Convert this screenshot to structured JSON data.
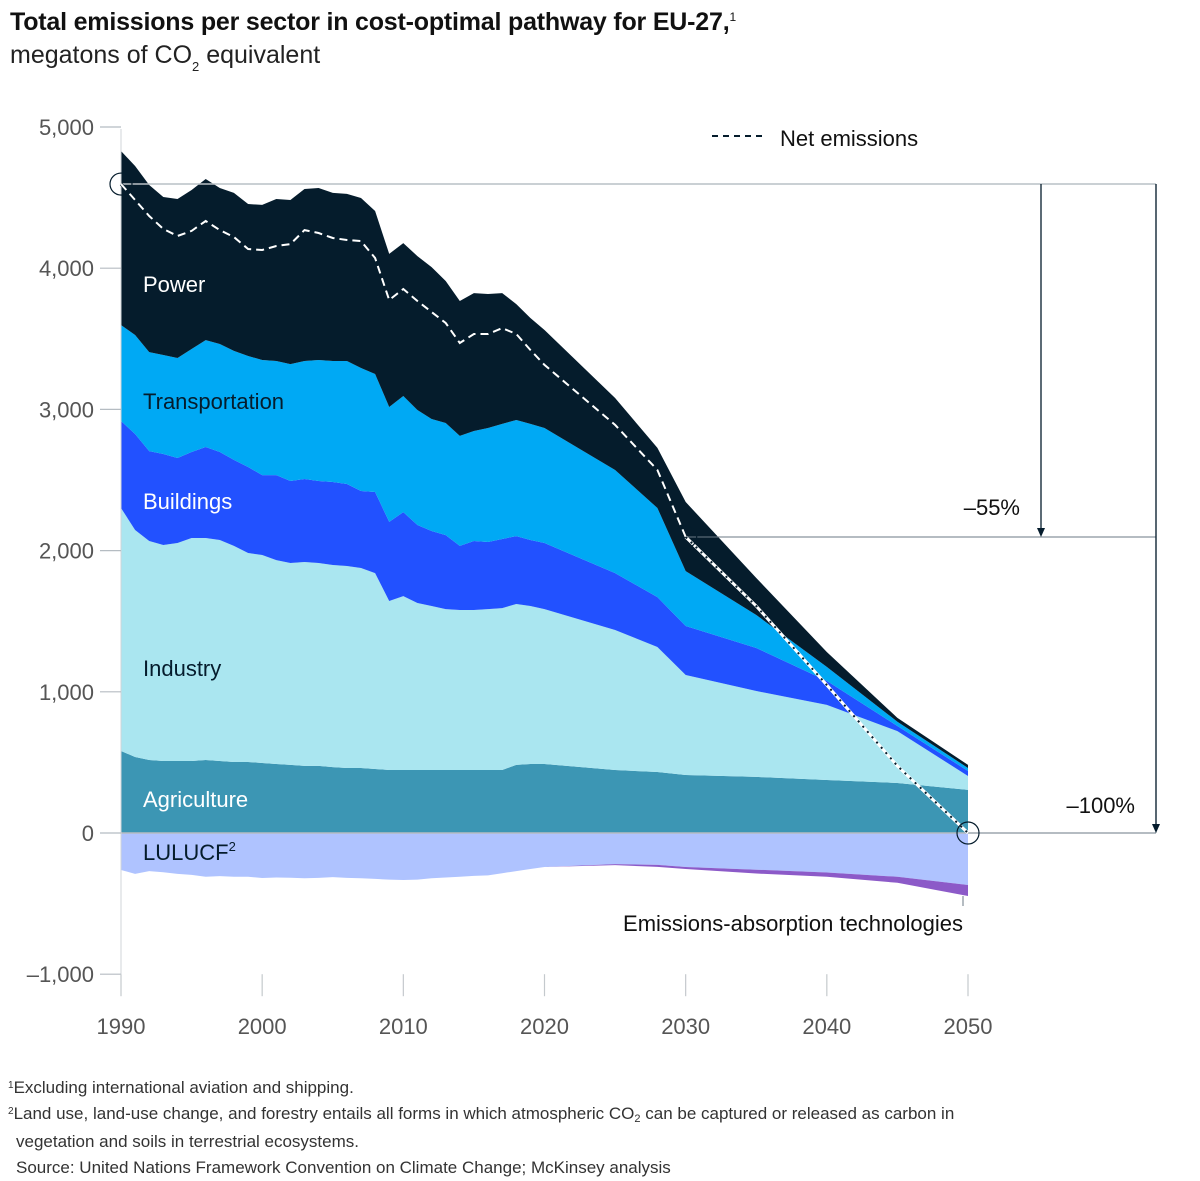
{
  "header": {
    "title": "Total emissions per sector in cost-optimal pathway for EU-27,",
    "title_footnote": "1",
    "subtitle_prefix": "megatons of CO",
    "subtitle_sub": "2",
    "subtitle_suffix": " equivalent"
  },
  "footnotes": {
    "note1_marker": "1",
    "note1_text": "Excluding international aviation and shipping.",
    "note2_marker": "2",
    "note2_text_a": "Land use, land-use change, and forestry entails all forms in which atmospheric CO",
    "note2_sub": "2",
    "note2_text_b": " can be captured or released as carbon in",
    "note2_text_c": "vegetation and soils in terrestrial ecosystems.",
    "source": "Source: United Nations Framework Convention on Climate Change; McKinsey analysis"
  },
  "chart_data": {
    "type": "area",
    "stacked": true,
    "title": "Total emissions per sector in cost-optimal pathway for EU-27",
    "ylabel": "megatons of CO2 equivalent",
    "xlabel": "",
    "xlim": [
      1990,
      2050
    ],
    "ylim": [
      -1000,
      5000
    ],
    "x_ticks": [
      1990,
      2000,
      2010,
      2020,
      2030,
      2040,
      2050
    ],
    "x_tick_labels": [
      "1990",
      "2000",
      "2010",
      "2020",
      "2030",
      "2040",
      "2050"
    ],
    "y_ticks": [
      5000,
      4000,
      3000,
      2000,
      1000,
      0,
      -1000
    ],
    "y_tick_labels": [
      "5,000",
      "4,000",
      "3,000",
      "2,000",
      "1,000",
      "0",
      "–1,000"
    ],
    "grid": false,
    "x": [
      1990,
      1991,
      1992,
      1993,
      1994,
      1995,
      1996,
      1997,
      1998,
      1999,
      2000,
      2001,
      2002,
      2003,
      2004,
      2005,
      2006,
      2007,
      2008,
      2009,
      2010,
      2011,
      2012,
      2013,
      2014,
      2015,
      2016,
      2017,
      2018,
      2019,
      2020,
      2025,
      2028,
      2030,
      2035,
      2040,
      2045,
      2050
    ],
    "series": [
      {
        "name": "Agriculture",
        "color": "#3c96b4",
        "label_color": "#ffffff",
        "values": [
          581,
          538,
          517,
          510,
          510,
          510,
          517,
          510,
          503,
          503,
          496,
          489,
          482,
          475,
          475,
          467,
          460,
          460,
          453,
          446,
          446,
          446,
          446,
          446,
          446,
          446,
          446,
          446,
          482,
          489,
          489,
          446,
          432,
          411,
          397,
          375,
          354,
          305
        ]
      },
      {
        "name": "Industry",
        "color": "#aae6f0",
        "label_color": "#051c2c",
        "values": [
          1721,
          1608,
          1551,
          1530,
          1544,
          1579,
          1572,
          1565,
          1530,
          1480,
          1473,
          1444,
          1430,
          1444,
          1437,
          1431,
          1431,
          1417,
          1388,
          1197,
          1232,
          1183,
          1162,
          1140,
          1133,
          1133,
          1140,
          1147,
          1140,
          1119,
          1097,
          992,
          885,
          708,
          609,
          532,
          368,
          99
        ]
      },
      {
        "name": "Buildings",
        "color": "#2251ff",
        "label_color": "#ffffff",
        "values": [
          616,
          680,
          637,
          644,
          602,
          609,
          645,
          623,
          609,
          609,
          566,
          602,
          581,
          588,
          581,
          588,
          581,
          545,
          574,
          560,
          595,
          552,
          531,
          524,
          454,
          489,
          475,
          489,
          481,
          467,
          468,
          403,
          354,
          347,
          304,
          170,
          36,
          35
        ]
      },
      {
        "name": "Transportation",
        "color": "#00a9f4",
        "label_color": "#051c2c",
        "values": [
          680,
          701,
          701,
          701,
          708,
          730,
          757,
          765,
          772,
          786,
          815,
          808,
          828,
          836,
          857,
          857,
          871,
          871,
          836,
          814,
          822,
          815,
          793,
          794,
          779,
          779,
          807,
          815,
          822,
          822,
          814,
          730,
          631,
          389,
          234,
          99,
          30,
          21
        ]
      },
      {
        "name": "Power",
        "color": "#051c2c",
        "label_color": "#ffffff",
        "values": [
          1232,
          1197,
          1183,
          1119,
          1126,
          1126,
          1141,
          1105,
          1119,
          1077,
          1098,
          1147,
          1162,
          1218,
          1218,
          1190,
          1183,
          1204,
          1154,
          1084,
          1083,
          1090,
          1076,
          1005,
          956,
          977,
          949,
          927,
          821,
          750,
          694,
          510,
          425,
          489,
          262,
          106,
          27,
          22
        ]
      },
      {
        "name": "LULUCF",
        "label_superscript": "2",
        "color": "#afc3ff",
        "label_color": "#051c2c",
        "negative": true,
        "values": [
          -262,
          -290,
          -270,
          -278,
          -290,
          -297,
          -310,
          -305,
          -310,
          -310,
          -319,
          -315,
          -317,
          -320,
          -318,
          -312,
          -318,
          -320,
          -325,
          -330,
          -333,
          -330,
          -320,
          -315,
          -310,
          -304,
          -300,
          -285,
          -270,
          -255,
          -241,
          -220,
          -226,
          -241,
          -260,
          -280,
          -310,
          -368
        ]
      },
      {
        "name": "Emissions-absorption technologies",
        "color": "#8c5ac8",
        "label_color": "#111111",
        "negative": true,
        "values": [
          0,
          0,
          0,
          0,
          0,
          0,
          0,
          0,
          0,
          0,
          0,
          0,
          0,
          0,
          0,
          0,
          0,
          0,
          0,
          0,
          0,
          0,
          0,
          0,
          0,
          0,
          0,
          0,
          0,
          0,
          0,
          -7,
          -14,
          -14,
          -27,
          -30,
          -43,
          -78
        ]
      }
    ],
    "net_emissions": {
      "name": "Net emissions",
      "style": "dashed",
      "values": [
        4596,
        4483,
        4370,
        4278,
        4228,
        4264,
        4334,
        4270,
        4221,
        4136,
        4129,
        4157,
        4171,
        4270,
        4249,
        4214,
        4200,
        4192,
        4072,
        3775,
        3853,
        3768,
        3690,
        3612,
        3470,
        3534,
        3534,
        3576,
        3534,
        3421,
        3315,
        2890,
        2571,
        2096,
        1607,
        1048,
        475,
        0
      ]
    },
    "annotations": [
      {
        "text": "–55%",
        "from_year": 1990,
        "to_year": 2030,
        "from_value": 4596,
        "to_value": 2096
      },
      {
        "text": "–100%",
        "from_year": 1990,
        "to_year": 2050,
        "from_value": 4596,
        "to_value": 0
      }
    ],
    "legend": {
      "entries": [
        {
          "label": "Net emissions",
          "style": "dashed"
        }
      ],
      "placement": "top-right"
    }
  }
}
